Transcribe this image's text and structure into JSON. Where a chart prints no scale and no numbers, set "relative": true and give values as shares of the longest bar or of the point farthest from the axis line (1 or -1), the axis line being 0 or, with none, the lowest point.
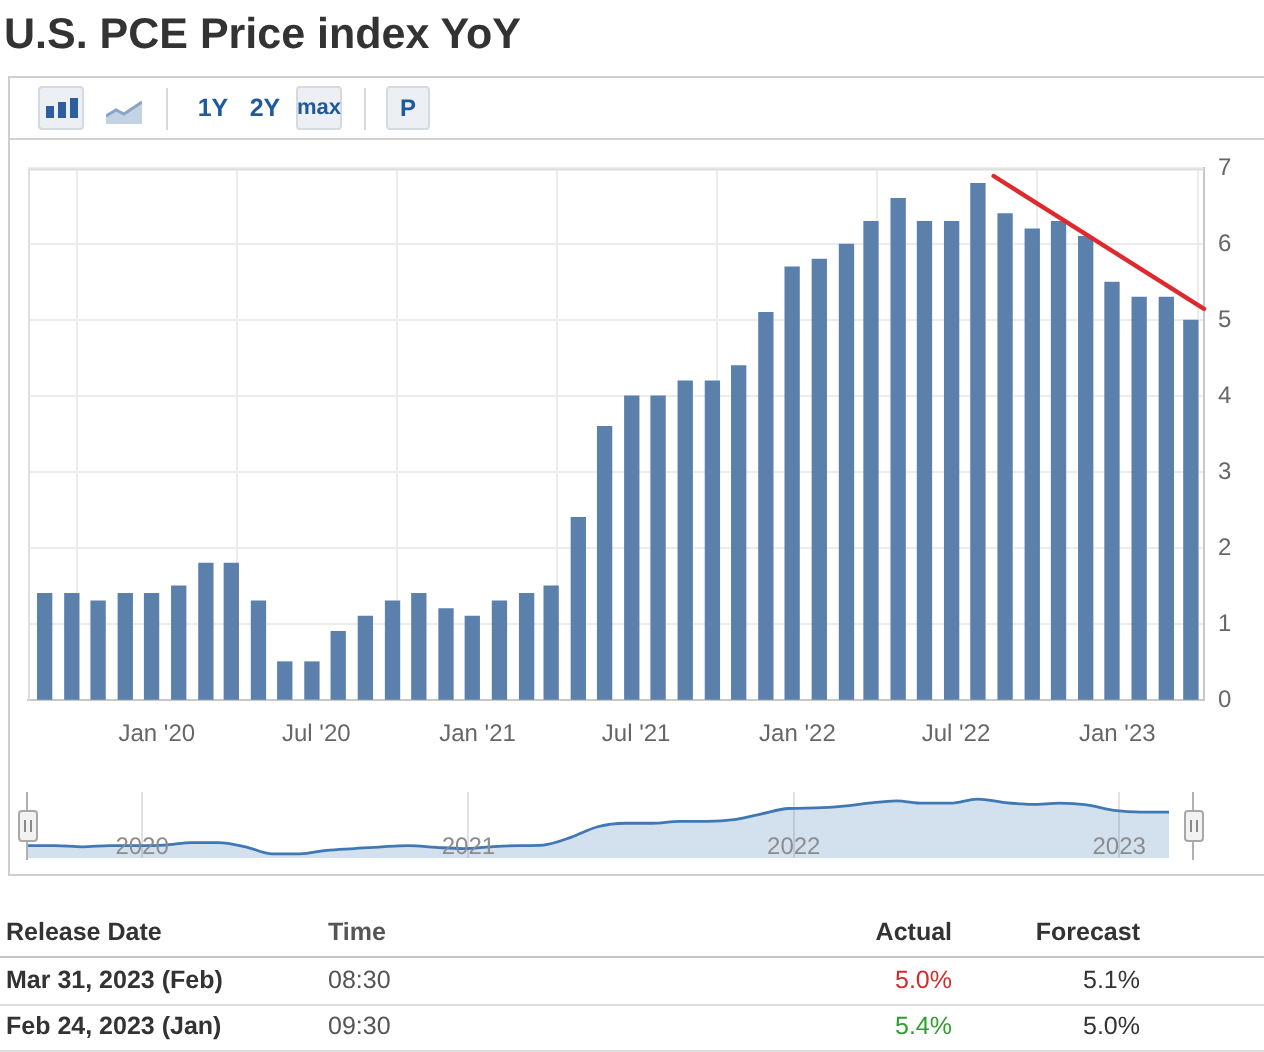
{
  "chart_data": [
    {
      "type": "bar",
      "title": "U.S. PCE Price index YoY",
      "annotations": [
        "1Y",
        "2Y",
        "max",
        "P"
      ],
      "x": [
        "2019-08-26",
        "2019-09-26",
        "2019-10-26",
        "2019-11-26",
        "2019-12-26",
        "2020-01-26",
        "2020-02-26",
        "2020-03-26",
        "2020-04-26",
        "2020-05-26",
        "2020-06-26",
        "2020-07-26",
        "2020-08-26",
        "2020-09-26",
        "2020-10-26",
        "2020-11-26",
        "2020-12-26",
        "2021-01-26",
        "2021-02-26",
        "2021-03-26",
        "2021-04-26",
        "2021-05-26",
        "2021-06-26",
        "2021-07-26",
        "2021-08-26",
        "2021-09-26",
        "2021-10-26",
        "2021-11-26",
        "2021-12-26",
        "2022-01-26",
        "2022-02-26",
        "2022-03-26",
        "2022-04-26",
        "2022-05-26",
        "2022-06-26",
        "2022-07-26",
        "2022-08-26",
        "2022-09-26",
        "2022-10-26",
        "2022-11-26",
        "2022-12-26",
        "2023-01-26",
        "2023-02-26",
        "2023-03-26"
      ],
      "xlim": [
        "2019-08-07",
        "2023-04-10"
      ],
      "xticks": [
        {
          "value": "2020-01-01",
          "label": "Jan '20"
        },
        {
          "value": "2020-07-01",
          "label": "Jul '20"
        },
        {
          "value": "2021-01-01",
          "label": "Jan '21"
        },
        {
          "value": "2021-07-01",
          "label": "Jul '21"
        },
        {
          "value": "2022-01-01",
          "label": "Jan '22"
        },
        {
          "value": "2022-07-01",
          "label": "Jul '22"
        },
        {
          "value": "2023-01-01",
          "label": "Jan '23"
        }
      ],
      "ylim": [
        0,
        7
      ],
      "yticks": [
        0,
        1,
        2,
        3,
        4,
        5,
        6,
        7
      ],
      "grid": true,
      "series": [
        {
          "color": "#5b80ab",
          "values": [
            1.4,
            1.4,
            1.3,
            1.4,
            1.4,
            1.5,
            1.8,
            1.8,
            1.3,
            0.5,
            0.5,
            0.9,
            1.1,
            1.3,
            1.4,
            1.2,
            1.1,
            1.3,
            1.4,
            1.5,
            2.4,
            3.6,
            4.0,
            4.0,
            4.2,
            4.2,
            4.4,
            5.1,
            5.7,
            5.8,
            6.0,
            6.3,
            6.6,
            6.3,
            6.3,
            6.8,
            6.4,
            6.2,
            6.3,
            6.1,
            5.5,
            5.3,
            5.3,
            5.0
          ]
        },
        {
          "type": "line",
          "color": "#de2a2f",
          "x": [
            "2022-08-13",
            "2023-04-10"
          ],
          "values": [
            6.9,
            5.15
          ]
        }
      ]
    },
    {
      "type": "area",
      "relative": true,
      "x": [
        "2019-08-26",
        "2019-09-26",
        "2019-10-26",
        "2019-11-26",
        "2019-12-26",
        "2020-01-26",
        "2020-02-26",
        "2020-03-26",
        "2020-04-26",
        "2020-05-26",
        "2020-06-26",
        "2020-07-26",
        "2020-08-26",
        "2020-09-26",
        "2020-10-26",
        "2020-11-26",
        "2020-12-26",
        "2021-01-26",
        "2021-02-26",
        "2021-03-26",
        "2021-04-26",
        "2021-05-26",
        "2021-06-26",
        "2021-07-26",
        "2021-08-26",
        "2021-09-26",
        "2021-10-26",
        "2021-11-26",
        "2021-12-26",
        "2022-01-26",
        "2022-02-26",
        "2022-03-26",
        "2022-04-26",
        "2022-05-26",
        "2022-06-26",
        "2022-07-26",
        "2022-08-26",
        "2022-09-26",
        "2022-10-26",
        "2022-11-26",
        "2022-12-26",
        "2023-01-26",
        "2023-02-26"
      ],
      "values": [
        0.21,
        0.21,
        0.19,
        0.21,
        0.21,
        0.22,
        0.26,
        0.26,
        0.19,
        0.07,
        0.07,
        0.13,
        0.16,
        0.19,
        0.21,
        0.18,
        0.16,
        0.19,
        0.21,
        0.22,
        0.35,
        0.53,
        0.59,
        0.59,
        0.62,
        0.62,
        0.65,
        0.75,
        0.84,
        0.85,
        0.88,
        0.93,
        0.97,
        0.93,
        0.93,
        1,
        0.94,
        0.91,
        0.93,
        0.9,
        0.81,
        0.78,
        0.78
      ],
      "color": "#3f78b5",
      "xlim": [
        "2019-08-26",
        "2023-03-26"
      ],
      "xticks": [
        {
          "value": "2020",
          "label": "2020"
        },
        {
          "value": "2021",
          "label": "2021"
        },
        {
          "value": "2022",
          "label": "2022"
        },
        {
          "value": "2023",
          "label": "2023"
        }
      ],
      "grid": "x"
    },
    {
      "type": "other",
      "annotations": [
        "Release Date",
        "Time",
        "Actual",
        "Forecast",
        "Mar 31, 2023 (Feb)",
        "08:30",
        "5.0%",
        "5.1%",
        "Feb 24, 2023 (Jan)",
        "09:30",
        "5.4%",
        "5.0%"
      ]
    }
  ]
}
